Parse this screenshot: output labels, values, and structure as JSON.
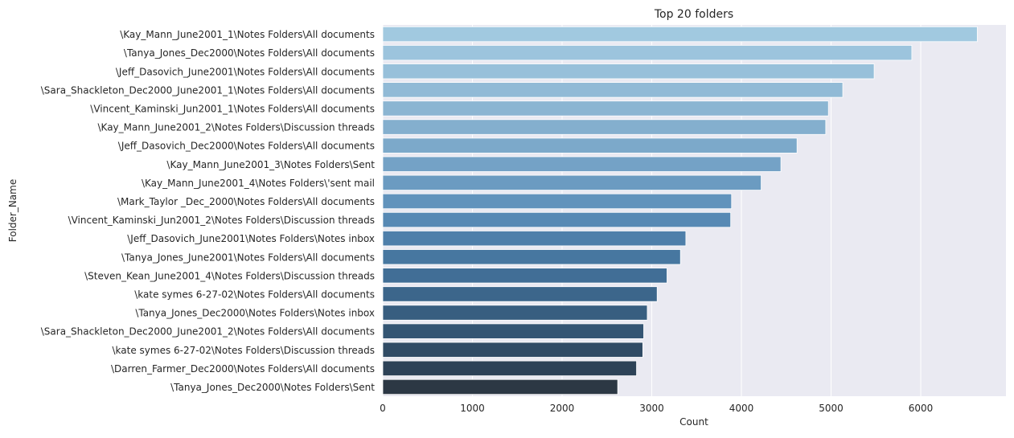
{
  "chart_data": {
    "type": "bar",
    "orientation": "horizontal",
    "title": "Top 20 folders",
    "xlabel": "Count",
    "ylabel": "Folder_Name",
    "xlim": [
      0,
      6950
    ],
    "xticks": [
      0,
      1000,
      2000,
      3000,
      4000,
      5000,
      6000
    ],
    "grid": true,
    "palette": "Blues_d",
    "colors": [
      "#a1c9e0",
      "#9cc4dd",
      "#97c0da",
      "#91bad6",
      "#8bb5d2",
      "#84afce",
      "#7ca9ca",
      "#74a2c6",
      "#6b9bc1",
      "#6193bc",
      "#5789b4",
      "#4e7faa",
      "#4777a0",
      "#416e96",
      "#3c668b",
      "#385e80",
      "#345573",
      "#304b65",
      "#2d4257",
      "#2c3844"
    ],
    "categories": [
      "\\Kay_Mann_June2001_1\\Notes Folders\\All documents",
      "\\Tanya_Jones_Dec2000\\Notes Folders\\All documents",
      "\\Jeff_Dasovich_June2001\\Notes Folders\\All documents",
      "\\Sara_Shackleton_Dec2000_June2001_1\\Notes Folders\\All documents",
      "\\Vincent_Kaminski_Jun2001_1\\Notes Folders\\All documents",
      "\\Kay_Mann_June2001_2\\Notes Folders\\Discussion threads",
      "\\Jeff_Dasovich_Dec2000\\Notes Folders\\All documents",
      "\\Kay_Mann_June2001_3\\Notes Folders\\Sent",
      "\\Kay_Mann_June2001_4\\Notes Folders\\'sent mail",
      "\\Mark_Taylor _Dec_2000\\Notes Folders\\All documents",
      "\\Vincent_Kaminski_Jun2001_2\\Notes Folders\\Discussion threads",
      "\\Jeff_Dasovich_June2001\\Notes Folders\\Notes inbox",
      "\\Tanya_Jones_June2001\\Notes Folders\\All documents",
      "\\Steven_Kean_June2001_4\\Notes Folders\\Discussion threads",
      "\\kate symes 6-27-02\\Notes Folders\\All documents",
      "\\Tanya_Jones_Dec2000\\Notes Folders\\Notes inbox",
      "\\Sara_Shackleton_Dec2000_June2001_2\\Notes Folders\\All documents",
      "\\kate symes 6-27-02\\Notes Folders\\Discussion threads",
      "\\Darren_Farmer_Dec2000\\Notes Folders\\All documents",
      "\\Tanya_Jones_Dec2000\\Notes Folders\\Sent"
    ],
    "values": [
      6630,
      5900,
      5480,
      5130,
      4970,
      4940,
      4620,
      4440,
      4220,
      3890,
      3880,
      3380,
      3320,
      3170,
      3060,
      2950,
      2910,
      2900,
      2830,
      2620
    ]
  }
}
